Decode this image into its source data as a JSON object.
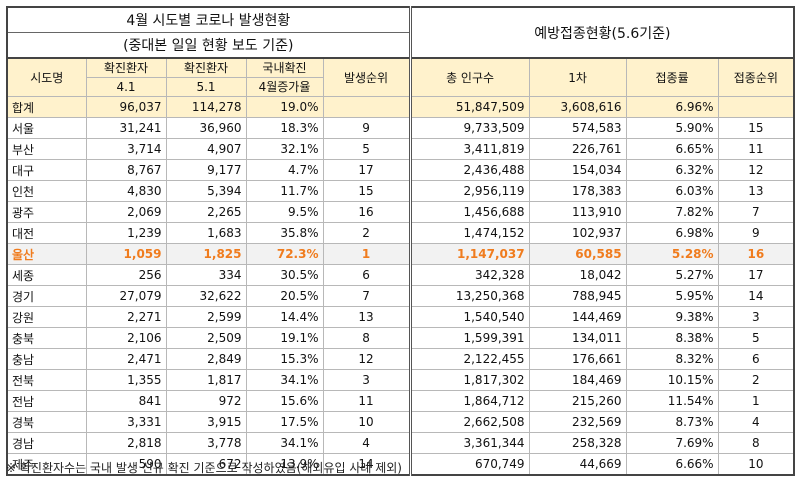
{
  "title": {
    "left_line1": "4월 시도별 코로나 발생현황",
    "left_line2": "(중대본 일일 현황 보도 기준)",
    "right": "예방접종현황(5.6기준)"
  },
  "headers": {
    "region": "시도명",
    "conf41_1": "확진환자",
    "conf41_2": "4.1",
    "conf51_1": "확진환자",
    "conf51_2": "5.1",
    "rate_1": "국내확진",
    "rate_2": "4월증가율",
    "rank": "발생순위",
    "pop": "총 인구수",
    "first": "1차",
    "vacc_rate": "접종률",
    "vacc_rank": "접종순위"
  },
  "total": {
    "region": "합계",
    "conf41": "96,037",
    "conf51": "114,278",
    "rate": "19.0%",
    "rank": "",
    "pop": "51,847,509",
    "first": "3,608,616",
    "vacc_rate": "6.96%",
    "vacc_rank": ""
  },
  "rows": [
    {
      "region": "서울",
      "conf41": "31,241",
      "conf51": "36,960",
      "rate": "18.3%",
      "rank": "9",
      "pop": "9,733,509",
      "first": "574,583",
      "vacc_rate": "5.90%",
      "vacc_rank": "15"
    },
    {
      "region": "부산",
      "conf41": "3,714",
      "conf51": "4,907",
      "rate": "32.1%",
      "rank": "5",
      "pop": "3,411,819",
      "first": "226,761",
      "vacc_rate": "6.65%",
      "vacc_rank": "11"
    },
    {
      "region": "대구",
      "conf41": "8,767",
      "conf51": "9,177",
      "rate": "4.7%",
      "rank": "17",
      "pop": "2,436,488",
      "first": "154,034",
      "vacc_rate": "6.32%",
      "vacc_rank": "12"
    },
    {
      "region": "인천",
      "conf41": "4,830",
      "conf51": "5,394",
      "rate": "11.7%",
      "rank": "15",
      "pop": "2,956,119",
      "first": "178,383",
      "vacc_rate": "6.03%",
      "vacc_rank": "13"
    },
    {
      "region": "광주",
      "conf41": "2,069",
      "conf51": "2,265",
      "rate": "9.5%",
      "rank": "16",
      "pop": "1,456,688",
      "first": "113,910",
      "vacc_rate": "7.82%",
      "vacc_rank": "7"
    },
    {
      "region": "대전",
      "conf41": "1,239",
      "conf51": "1,683",
      "rate": "35.8%",
      "rank": "2",
      "pop": "1,474,152",
      "first": "102,937",
      "vacc_rate": "6.98%",
      "vacc_rank": "9"
    },
    {
      "region": "울산",
      "conf41": "1,059",
      "conf51": "1,825",
      "rate": "72.3%",
      "rank": "1",
      "pop": "1,147,037",
      "first": "60,585",
      "vacc_rate": "5.28%",
      "vacc_rank": "16"
    },
    {
      "region": "세종",
      "conf41": "256",
      "conf51": "334",
      "rate": "30.5%",
      "rank": "6",
      "pop": "342,328",
      "first": "18,042",
      "vacc_rate": "5.27%",
      "vacc_rank": "17"
    },
    {
      "region": "경기",
      "conf41": "27,079",
      "conf51": "32,622",
      "rate": "20.5%",
      "rank": "7",
      "pop": "13,250,368",
      "first": "788,945",
      "vacc_rate": "5.95%",
      "vacc_rank": "14"
    },
    {
      "region": "강원",
      "conf41": "2,271",
      "conf51": "2,599",
      "rate": "14.4%",
      "rank": "13",
      "pop": "1,540,540",
      "first": "144,469",
      "vacc_rate": "9.38%",
      "vacc_rank": "3"
    },
    {
      "region": "충북",
      "conf41": "2,106",
      "conf51": "2,509",
      "rate": "19.1%",
      "rank": "8",
      "pop": "1,599,391",
      "first": "134,011",
      "vacc_rate": "8.38%",
      "vacc_rank": "5"
    },
    {
      "region": "충남",
      "conf41": "2,471",
      "conf51": "2,849",
      "rate": "15.3%",
      "rank": "12",
      "pop": "2,122,455",
      "first": "176,661",
      "vacc_rate": "8.32%",
      "vacc_rank": "6"
    },
    {
      "region": "전북",
      "conf41": "1,355",
      "conf51": "1,817",
      "rate": "34.1%",
      "rank": "3",
      "pop": "1,817,302",
      "first": "184,469",
      "vacc_rate": "10.15%",
      "vacc_rank": "2"
    },
    {
      "region": "전남",
      "conf41": "841",
      "conf51": "972",
      "rate": "15.6%",
      "rank": "11",
      "pop": "1,864,712",
      "first": "215,260",
      "vacc_rate": "11.54%",
      "vacc_rank": "1"
    },
    {
      "region": "경북",
      "conf41": "3,331",
      "conf51": "3,915",
      "rate": "17.5%",
      "rank": "10",
      "pop": "2,662,508",
      "first": "232,569",
      "vacc_rate": "8.73%",
      "vacc_rank": "4"
    },
    {
      "region": "경남",
      "conf41": "2,818",
      "conf51": "3,778",
      "rate": "34.1%",
      "rank": "4",
      "pop": "3,361,344",
      "first": "258,328",
      "vacc_rate": "7.69%",
      "vacc_rank": "8"
    },
    {
      "region": "제주",
      "conf41": "590",
      "conf51": "672",
      "rate": "13.9%",
      "rank": "14",
      "pop": "670,749",
      "first": "44,669",
      "vacc_rate": "6.66%",
      "vacc_rank": "10"
    }
  ],
  "highlight_color": "#f07c1e",
  "header_bg": "#fff2cc",
  "footnote": "※ 확진환자수는 국내 발생 신규 확진 기준으로 작성하였음(해외유입 사례 제외)"
}
